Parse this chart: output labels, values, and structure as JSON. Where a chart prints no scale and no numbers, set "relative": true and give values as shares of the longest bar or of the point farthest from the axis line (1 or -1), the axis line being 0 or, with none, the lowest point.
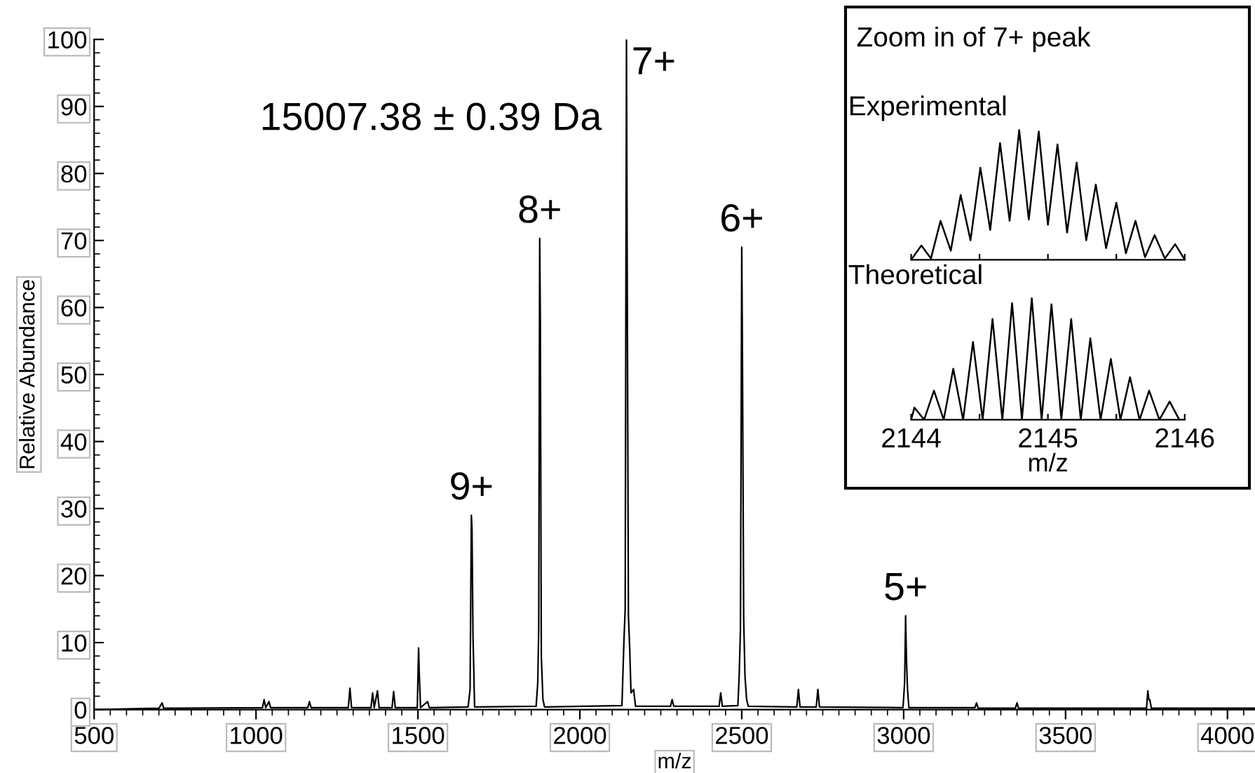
{
  "chart_data": [
    {
      "type": "line",
      "xlabel": "m/z",
      "ylabel": "Relative Abundance",
      "xlim": [
        500,
        4085
      ],
      "ylim": [
        0,
        100
      ],
      "xticks": [
        500,
        1000,
        1500,
        2000,
        2500,
        3000,
        3500,
        4000
      ],
      "yticks": [
        0,
        10,
        20,
        30,
        40,
        50,
        60,
        70,
        80,
        90,
        100
      ],
      "grid": false,
      "marker": "none",
      "line_style": "solid",
      "annotations": [
        "15007.38 ± 0.39 Da",
        {
          "text": "9+",
          "x": 1665,
          "y": 29
        },
        {
          "text": "8+",
          "x": 1876,
          "y": 70.3
        },
        {
          "text": "7+",
          "x": 2144,
          "y": 100
        },
        {
          "text": "6+",
          "x": 2500,
          "y": 69
        },
        {
          "text": "5+",
          "x": 3006,
          "y": 14
        }
      ],
      "series": [
        {
          "color": "#000000",
          "x": [
            500,
            700,
            710,
            715,
            1020,
            1025,
            1030,
            1040,
            1045,
            1160,
            1165,
            1170,
            1285,
            1290,
            1295,
            1355,
            1360,
            1365,
            1375,
            1380,
            1420,
            1425,
            1430,
            1498,
            1502,
            1504,
            1508,
            1530,
            1535,
            1655,
            1661,
            1665,
            1667,
            1670,
            1675,
            1865,
            1870,
            1873,
            1876,
            1878,
            1881,
            1886,
            1891,
            2130,
            2136,
            2140,
            2144,
            2146,
            2150,
            2154,
            2158,
            2166,
            2172,
            2280,
            2285,
            2290,
            2430,
            2435,
            2440,
            2488,
            2492,
            2496,
            2500,
            2502,
            2506,
            2510,
            2515,
            2520,
            2670,
            2675,
            2680,
            2730,
            2735,
            2740,
            2998,
            3003,
            3006,
            3009,
            3012,
            3016,
            3220,
            3225,
            3230,
            3345,
            3350,
            3355,
            3750,
            3754,
            3757,
            3760,
            3765,
            4085
          ],
          "values": [
            0,
            0.2,
            1,
            0.2,
            0.3,
            1.5,
            0.3,
            1.2,
            0.3,
            0.3,
            1.2,
            0.3,
            0.3,
            3.2,
            0.3,
            0.3,
            2.5,
            0.3,
            2.8,
            0.3,
            0.3,
            2.7,
            0.3,
            0.3,
            9.2,
            5.5,
            0.3,
            1.2,
            0.3,
            0.4,
            3,
            29,
            27,
            11,
            0.4,
            0.5,
            4,
            12,
            70.3,
            58,
            8,
            1.5,
            0.4,
            0.6,
            10,
            15,
            100,
            69.5,
            14,
            9,
            2.5,
            3,
            0.5,
            0.5,
            1.5,
            0.5,
            0.5,
            2.5,
            0.5,
            0.6,
            5,
            12,
            69,
            54,
            13.5,
            5,
            1.5,
            0.5,
            0.4,
            3,
            0.4,
            0.4,
            3,
            0.4,
            0.3,
            4,
            14,
            7,
            3,
            0.3,
            0.3,
            1,
            0.2,
            0.2,
            1,
            0.2,
            0.2,
            2.8,
            1.5,
            1.5,
            0.2,
            0.2
          ]
        }
      ]
    },
    {
      "type": "line",
      "title": "Experimental",
      "relative": true,
      "xlim": [
        2144,
        2146
      ],
      "xticks": [
        {
          "value": 2144,
          "label": null
        },
        {
          "value": 2144.5,
          "label": null
        },
        {
          "value": 2145,
          "label": null
        },
        {
          "value": 2145.5,
          "label": null
        },
        {
          "value": 2146,
          "label": null
        }
      ],
      "tick_labels": false,
      "grid": false,
      "marker": "none",
      "line_style": "solid",
      "annotations": [
        "Zoom in of 7+ peak"
      ],
      "series": [
        {
          "color": "#000000",
          "x": [
            2144.0,
            2144.075,
            2144.145,
            2144.215,
            2144.29,
            2144.362,
            2144.434,
            2144.506,
            2144.578,
            2144.65,
            2144.72,
            2144.79,
            2144.86,
            2144.933,
            2145.0,
            2145.07,
            2145.14,
            2145.21,
            2145.28,
            2145.35,
            2145.425,
            2145.5,
            2145.57,
            2145.64,
            2145.71,
            2145.78,
            2145.855,
            2145.93,
            2146.0
          ],
          "values": [
            0,
            0.11,
            0.01,
            0.3,
            0.07,
            0.5,
            0.15,
            0.71,
            0.23,
            0.9,
            0.3,
            1.0,
            0.31,
            0.99,
            0.27,
            0.89,
            0.21,
            0.75,
            0.15,
            0.58,
            0.09,
            0.44,
            0.05,
            0.3,
            0.02,
            0.19,
            0.01,
            0.12,
            0
          ]
        }
      ]
    },
    {
      "type": "line",
      "title": "Theoretical",
      "xlabel": "m/z",
      "relative": true,
      "xlim": [
        2144,
        2146
      ],
      "xticks": [
        2144,
        {
          "value": 2144.5,
          "label": null
        },
        2145,
        {
          "value": 2145.5,
          "label": null
        },
        2146
      ],
      "tick_labels": "x",
      "grid": false,
      "marker": "none",
      "line_style": "solid",
      "series": [
        {
          "color": "#000000",
          "x": [
            2144.0,
            2144.024,
            2144.095,
            2144.167,
            2144.238,
            2144.308,
            2144.38,
            2144.452,
            2144.523,
            2144.595,
            2144.667,
            2144.738,
            2144.81,
            2144.882,
            2144.954,
            2145.026,
            2145.098,
            2145.17,
            2145.24,
            2145.31,
            2145.385,
            2145.46,
            2145.53,
            2145.6,
            2145.67,
            2145.74,
            2145.815,
            2145.89,
            2145.96,
            2146.0
          ],
          "values": [
            0,
            0.1,
            0,
            0.24,
            0,
            0.42,
            0,
            0.64,
            0,
            0.83,
            0,
            0.96,
            0,
            1.0,
            0,
            0.95,
            0,
            0.83,
            0,
            0.67,
            0,
            0.5,
            0,
            0.35,
            0,
            0.24,
            0,
            0.15,
            0,
            0
          ]
        }
      ]
    }
  ]
}
